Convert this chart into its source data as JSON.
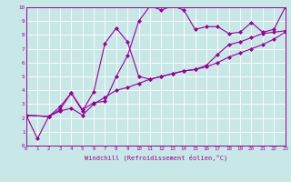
{
  "xlabel": "Windchill (Refroidissement éolien,°C)",
  "xlim": [
    0,
    23
  ],
  "ylim": [
    0,
    10
  ],
  "bg_color": "#c8e8e8",
  "line_color": "#990099",
  "grid_color": "#ffffff",
  "line1_x": [
    0,
    1,
    2,
    3,
    4,
    5,
    6,
    7,
    8,
    9,
    10,
    11,
    12,
    13,
    14,
    15,
    16,
    17,
    18,
    19,
    20,
    21,
    22,
    23
  ],
  "line1_y": [
    2.2,
    0.5,
    2.1,
    2.6,
    3.8,
    2.6,
    3.1,
    3.2,
    5.0,
    6.5,
    9.0,
    10.1,
    9.8,
    10.1,
    9.8,
    8.4,
    8.6,
    8.6,
    8.1,
    8.2,
    8.9,
    8.2,
    8.4,
    10.0
  ],
  "line2_x": [
    0,
    2,
    3,
    4,
    5,
    6,
    7,
    8,
    9,
    10,
    11,
    12,
    13,
    14,
    15,
    16,
    17,
    18,
    19,
    20,
    21,
    22,
    23
  ],
  "line2_y": [
    2.2,
    2.1,
    2.8,
    3.8,
    2.5,
    3.9,
    7.4,
    8.5,
    7.5,
    5.0,
    4.8,
    5.0,
    5.2,
    5.4,
    5.5,
    5.8,
    6.6,
    7.3,
    7.5,
    7.8,
    8.1,
    8.2,
    8.3
  ],
  "line3_x": [
    0,
    2,
    3,
    4,
    5,
    6,
    7,
    8,
    9,
    10,
    11,
    12,
    13,
    14,
    15,
    16,
    17,
    18,
    19,
    20,
    21,
    22,
    23
  ],
  "line3_y": [
    2.2,
    2.1,
    2.5,
    2.7,
    2.2,
    3.0,
    3.5,
    4.0,
    4.2,
    4.5,
    4.8,
    5.0,
    5.2,
    5.4,
    5.5,
    5.7,
    6.0,
    6.4,
    6.7,
    7.0,
    7.3,
    7.7,
    8.2
  ]
}
